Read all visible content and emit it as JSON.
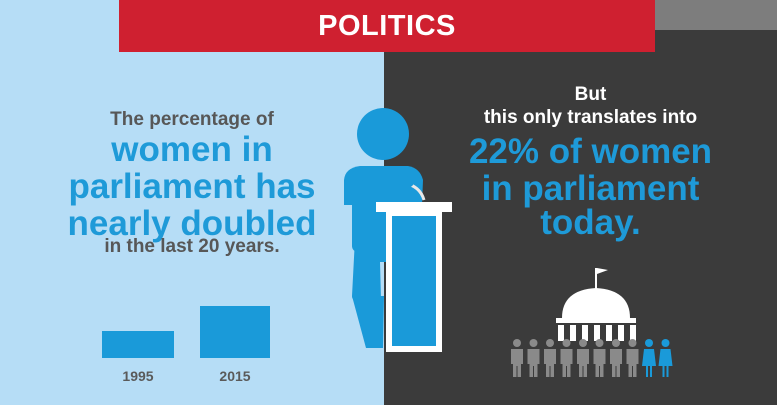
{
  "banner": {
    "title": "POLITICS"
  },
  "left": {
    "line1": "The percentage of",
    "highlight": [
      "women in",
      "parliament has",
      "nearly doubled"
    ],
    "line_last": "in the last 20 years."
  },
  "right": {
    "line1": "But",
    "line2": "this only translates into",
    "highlight": [
      "22% of women",
      "in parliament",
      "today."
    ]
  },
  "chart_data": {
    "type": "bar",
    "categories": [
      "1995",
      "2015"
    ],
    "values": [
      11.3,
      22
    ],
    "title": "",
    "xlabel": "",
    "ylabel": ""
  },
  "people": {
    "total": 10,
    "women": 2
  },
  "colors": {
    "accent_blue": "#1a9ad9",
    "banner_red": "#cf2030",
    "dark_bg": "#3b3b3b",
    "light_bg": "#b6ddf6"
  }
}
